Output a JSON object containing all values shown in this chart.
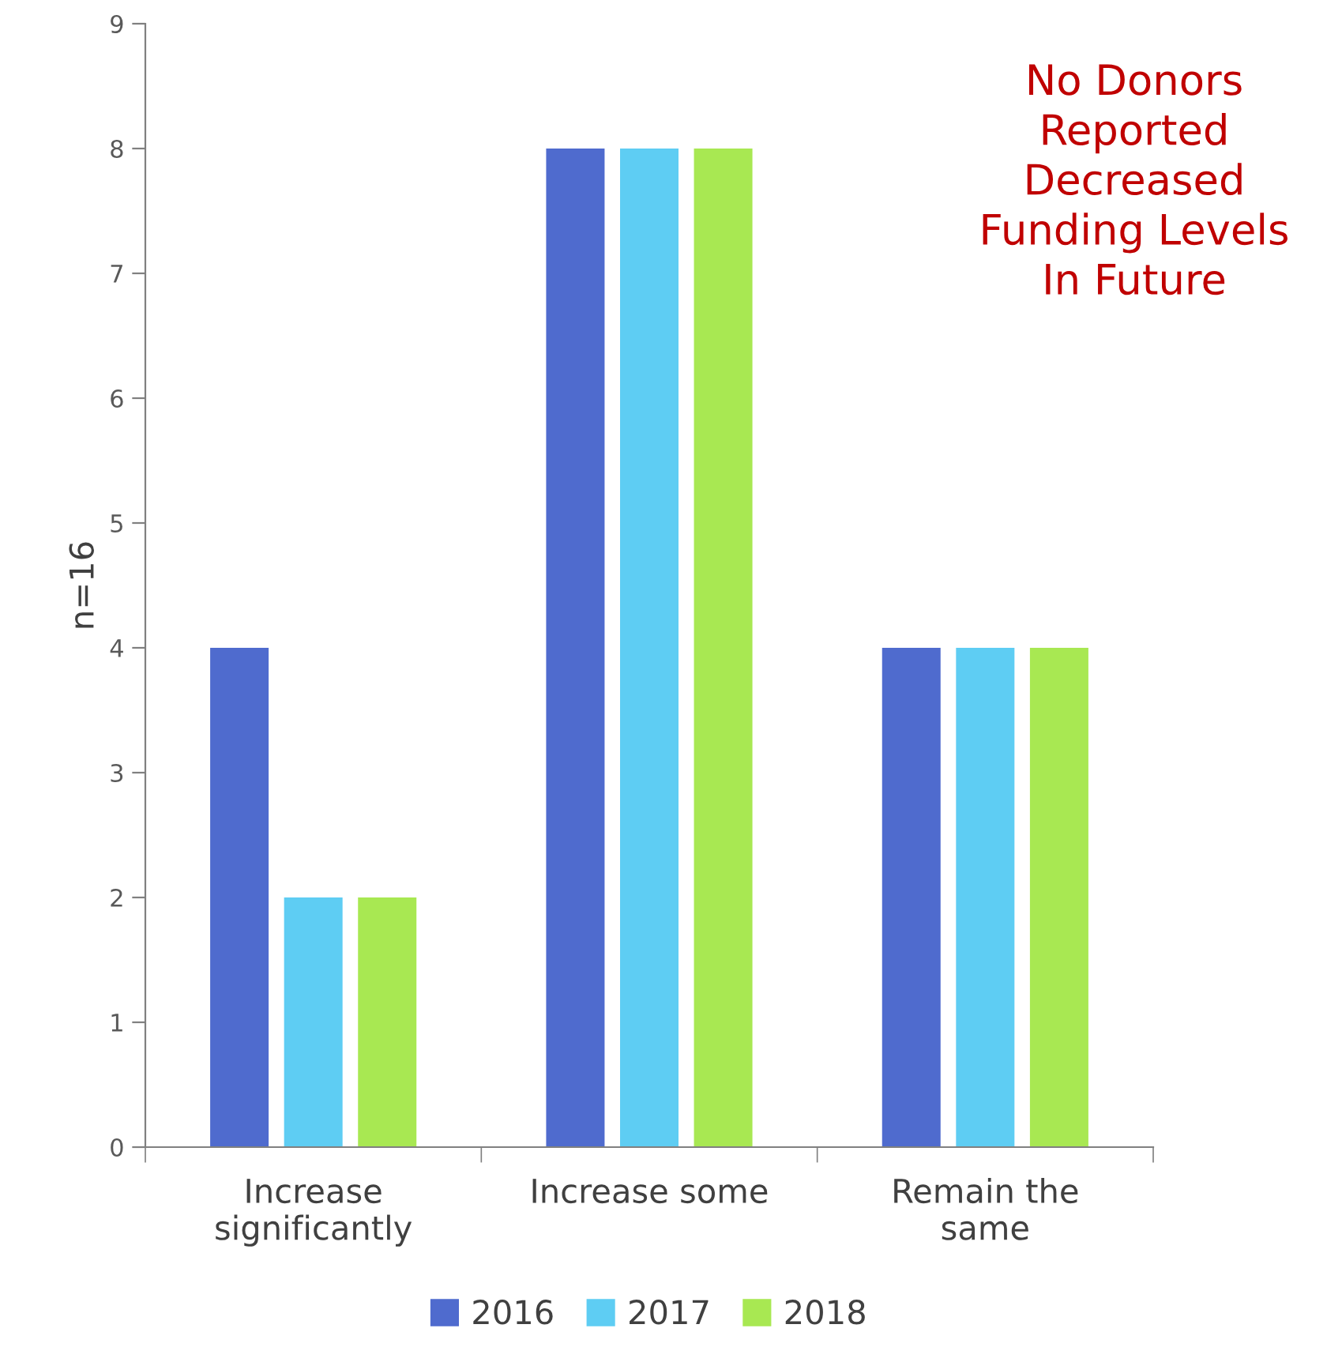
{
  "chart_data": {
    "type": "bar",
    "ylabel": "n=16",
    "categories": [
      "Increase\nsignificantly",
      "Increase some",
      "Remain the\nsame"
    ],
    "series": [
      {
        "name": "2016",
        "color": "#4f6bce",
        "values": [
          4,
          8,
          4
        ]
      },
      {
        "name": "2017",
        "color": "#5ecdf3",
        "values": [
          2,
          8,
          4
        ]
      },
      {
        "name": "2018",
        "color": "#a8e852",
        "values": [
          2,
          8,
          4
        ]
      }
    ],
    "ylim": [
      0,
      9
    ],
    "yticks": [
      0,
      1,
      2,
      3,
      4,
      5,
      6,
      7,
      8,
      9
    ],
    "grid": false,
    "legend": "bottom",
    "annotations": [
      "No Donors\nReported\nDecreased\nFunding Levels\nIn Future"
    ]
  }
}
